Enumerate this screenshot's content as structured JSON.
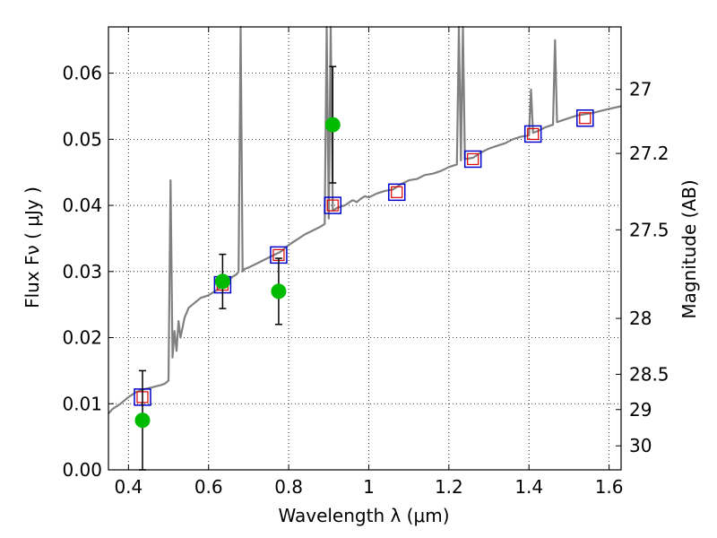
{
  "chart_data": {
    "type": "line",
    "title": "",
    "xlabel": "Wavelength  λ (μm)",
    "ylabel": "Flux  Fν  ( μJy )",
    "ylabel_right": "Magnitude (AB)",
    "xlim": [
      0.35,
      1.63
    ],
    "ylim": [
      0.0,
      0.067
    ],
    "grid": true,
    "x_ticks": [
      0.4,
      0.6,
      0.8,
      1.0,
      1.2,
      1.4,
      1.6
    ],
    "x_tick_labels": [
      "0.4",
      "0.6",
      "0.8",
      "1",
      "1.2",
      "1.4",
      "1.6"
    ],
    "y_ticks": [
      0.0,
      0.01,
      0.02,
      0.03,
      0.04,
      0.05,
      0.06
    ],
    "y_tick_labels": [
      "0.00",
      "0.01",
      "0.02",
      "0.03",
      "0.04",
      "0.05",
      "0.06"
    ],
    "right_ticks": [
      27.0,
      27.2,
      27.5,
      28.0,
      28.5,
      29.0,
      30.0
    ],
    "right_tick_labels": [
      "27",
      "27.2",
      "27.5",
      "28",
      "28.5",
      "29",
      "30"
    ],
    "colors": {
      "model": "#808080",
      "observed": "#00bb00",
      "model_photometry": "#0000cc",
      "model_photometry_inner": "#dd0000",
      "errorbar": "#000000",
      "grid": "#000000"
    },
    "series": [
      {
        "style": "line",
        "x": [
          0.35,
          0.36,
          0.38,
          0.4,
          0.42,
          0.44,
          0.46,
          0.48,
          0.49,
          0.5,
          0.505,
          0.51,
          0.515,
          0.52,
          0.525,
          0.53,
          0.54,
          0.55,
          0.56,
          0.57,
          0.58,
          0.59,
          0.6,
          0.61,
          0.62,
          0.63,
          0.64,
          0.65,
          0.66,
          0.67,
          0.675,
          0.68,
          0.685,
          0.69,
          0.7,
          0.72,
          0.74,
          0.76,
          0.78,
          0.8,
          0.82,
          0.84,
          0.86,
          0.88,
          0.89,
          0.895,
          0.9,
          0.905,
          0.91,
          0.92,
          0.93,
          0.94,
          0.95,
          0.96,
          0.97,
          0.98,
          0.99,
          1.0,
          1.02,
          1.04,
          1.06,
          1.08,
          1.1,
          1.12,
          1.14,
          1.16,
          1.18,
          1.2,
          1.22,
          1.225,
          1.23,
          1.235,
          1.24,
          1.26,
          1.28,
          1.3,
          1.32,
          1.34,
          1.36,
          1.38,
          1.4,
          1.405,
          1.41,
          1.42,
          1.44,
          1.46,
          1.465,
          1.47,
          1.48,
          1.5,
          1.52,
          1.54,
          1.56,
          1.58,
          1.6,
          1.63
        ],
        "values": [
          0.0085,
          0.0092,
          0.01,
          0.011,
          0.0118,
          0.0122,
          0.0125,
          0.0128,
          0.013,
          0.0135,
          0.0438,
          0.017,
          0.021,
          0.018,
          0.0225,
          0.02,
          0.023,
          0.0245,
          0.025,
          0.0255,
          0.026,
          0.0262,
          0.0264,
          0.0268,
          0.0272,
          0.0276,
          0.0282,
          0.0288,
          0.0292,
          0.0296,
          0.03,
          0.067,
          0.03,
          0.0304,
          0.0306,
          0.0312,
          0.0318,
          0.0324,
          0.033,
          0.034,
          0.0348,
          0.0356,
          0.0362,
          0.0368,
          0.0372,
          0.067,
          0.038,
          0.067,
          0.0392,
          0.0396,
          0.0398,
          0.04,
          0.0404,
          0.0408,
          0.0405,
          0.041,
          0.0414,
          0.0412,
          0.0418,
          0.0422,
          0.0424,
          0.0432,
          0.0438,
          0.044,
          0.0446,
          0.0448,
          0.0452,
          0.0458,
          0.0462,
          0.067,
          0.0468,
          0.067,
          0.047,
          0.0472,
          0.048,
          0.0486,
          0.049,
          0.0494,
          0.05,
          0.0504,
          0.0506,
          0.0575,
          0.051,
          0.0512,
          0.0518,
          0.0522,
          0.065,
          0.0526,
          0.0528,
          0.0532,
          0.0536,
          0.0538,
          0.054,
          0.0543,
          0.0546,
          0.055
        ]
      },
      {
        "style": "scatter-errorbar",
        "marker": "circle",
        "x": [
          0.435,
          0.635,
          0.775,
          0.91
        ],
        "values": [
          0.0075,
          0.0285,
          0.027,
          0.0522
        ],
        "yerr_low": [
          0.0075,
          0.0041,
          0.005,
          0.0088
        ],
        "yerr_high": [
          0.0075,
          0.0041,
          0.005,
          0.0088
        ]
      },
      {
        "style": "scatter",
        "marker": "square",
        "x": [
          0.435,
          0.635,
          0.775,
          0.91,
          1.07,
          1.26,
          1.41,
          1.54
        ],
        "values": [
          0.011,
          0.028,
          0.0325,
          0.04,
          0.042,
          0.047,
          0.0508,
          0.0532
        ]
      }
    ]
  }
}
